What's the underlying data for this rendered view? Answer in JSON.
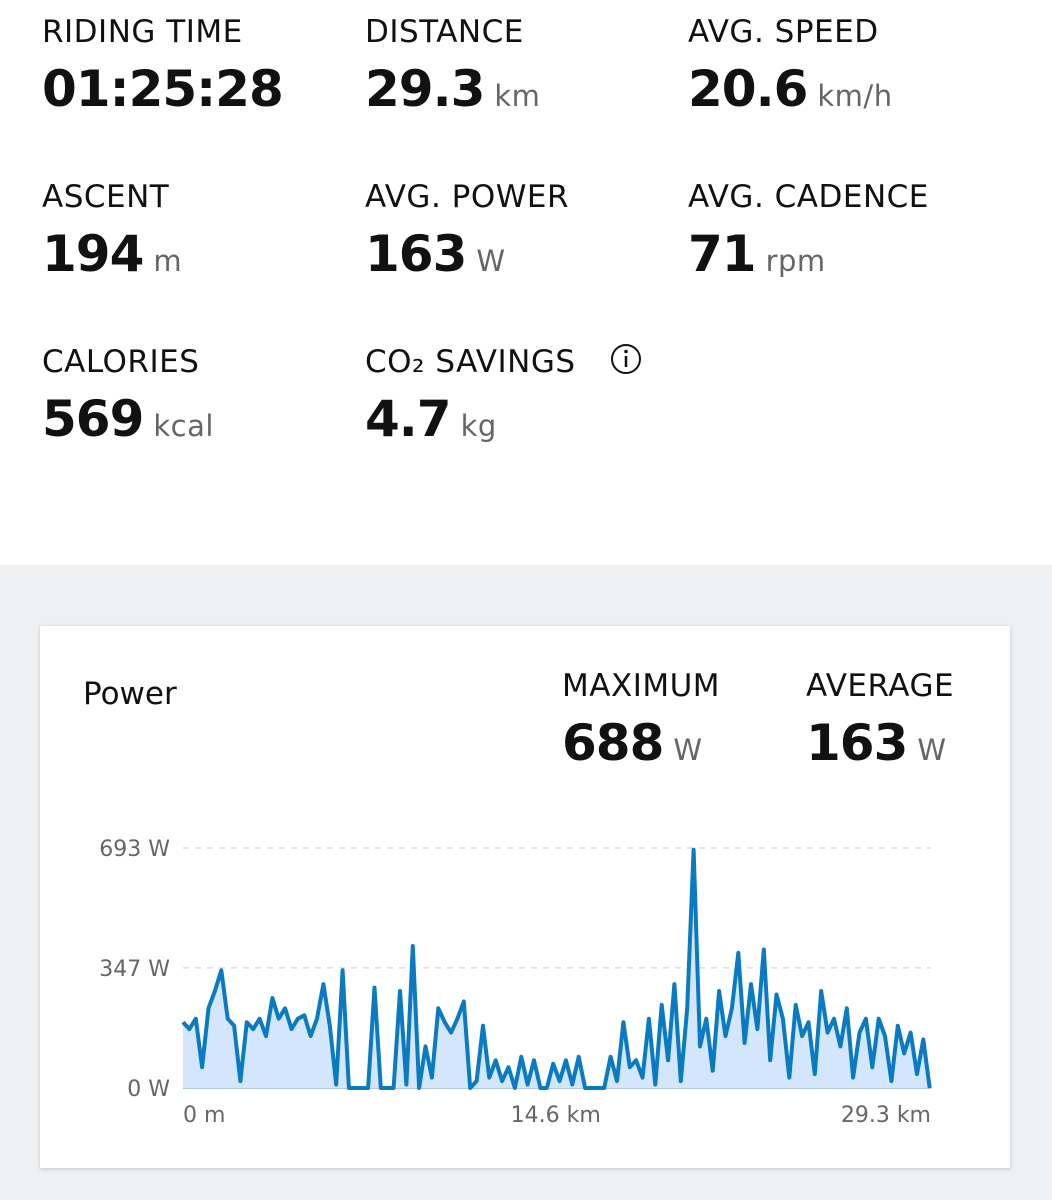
{
  "stats": [
    {
      "label": "RIDING TIME",
      "value": "01:25:28"
    },
    {
      "label": "DISTANCE",
      "value": "29.3",
      "unit": "km"
    },
    {
      "label": "AVG. SPEED",
      "value": "20.6",
      "unit": "km/h"
    },
    {
      "label": "ASCENT",
      "value": "194",
      "unit": "m"
    },
    {
      "label": "AVG. POWER",
      "value": "163",
      "unit": "W"
    },
    {
      "label": "AVG. CADENCE",
      "value": "71",
      "unit": "rpm"
    },
    {
      "label": "CALORIES",
      "value": "569",
      "unit": "kcal"
    },
    {
      "label": "CO₂ SAVINGS",
      "value": "4.7",
      "unit": "kg"
    }
  ],
  "chart_data": {
    "type": "area",
    "title": "Power",
    "summary": [
      {
        "label": "MAXIMUM",
        "value": "688",
        "unit": "W"
      },
      {
        "label": "AVERAGE",
        "value": "163",
        "unit": "W"
      }
    ],
    "x": [
      0,
      0.25,
      0.5,
      0.75,
      1,
      1.25,
      1.5,
      1.75,
      2,
      2.25,
      2.5,
      2.75,
      3,
      3.25,
      3.5,
      3.75,
      4,
      4.25,
      4.5,
      4.75,
      5,
      5.25,
      5.5,
      5.75,
      6,
      6.25,
      6.5,
      6.75,
      7,
      7.25,
      7.5,
      7.75,
      8,
      8.25,
      8.5,
      8.75,
      9,
      9.25,
      9.5,
      9.75,
      10,
      10.25,
      10.5,
      10.75,
      11,
      11.25,
      11.5,
      11.75,
      12,
      12.25,
      12.5,
      12.75,
      13,
      13.25,
      13.5,
      13.75,
      14,
      14.25,
      14.5,
      14.75,
      15,
      15.25,
      15.5,
      15.75,
      16,
      16.25,
      16.5,
      16.75,
      17,
      17.25,
      17.5,
      17.75,
      18,
      18.25,
      18.5,
      18.75,
      19,
      19.25,
      19.5,
      19.75,
      20,
      20.25,
      20.5,
      20.75,
      21,
      21.25,
      21.5,
      21.75,
      22,
      22.25,
      22.5,
      22.75,
      23,
      23.25,
      23.5,
      23.75,
      24,
      24.25,
      24.5,
      24.75,
      25,
      25.25,
      25.5,
      25.75,
      26,
      26.25,
      26.5,
      26.75,
      27,
      27.25,
      27.5,
      27.75,
      28,
      28.25,
      28.5,
      28.75,
      29,
      29.25
    ],
    "values": [
      190,
      170,
      200,
      60,
      230,
      280,
      340,
      200,
      180,
      20,
      190,
      170,
      200,
      150,
      260,
      200,
      230,
      170,
      200,
      210,
      150,
      200,
      300,
      180,
      10,
      340,
      0,
      0,
      0,
      0,
      290,
      0,
      0,
      0,
      280,
      10,
      410,
      0,
      120,
      30,
      230,
      190,
      160,
      200,
      250,
      0,
      20,
      180,
      30,
      80,
      20,
      60,
      0,
      90,
      10,
      80,
      0,
      0,
      70,
      20,
      80,
      10,
      90,
      0,
      0,
      0,
      0,
      90,
      20,
      190,
      60,
      80,
      30,
      200,
      10,
      240,
      80,
      300,
      20,
      230,
      688,
      120,
      200,
      50,
      280,
      150,
      230,
      390,
      130,
      300,
      170,
      400,
      80,
      270,
      200,
      30,
      240,
      150,
      190,
      40,
      280,
      160,
      200,
      120,
      230,
      30,
      160,
      200,
      60,
      200,
      150,
      20,
      180,
      100,
      160,
      40,
      140,
      0
    ],
    "xlim": [
      0,
      29.3
    ],
    "xticks": [
      {
        "value": 0,
        "label": "0 m"
      },
      {
        "value": 14.6,
        "label": "14.6 km"
      },
      {
        "value": 29.3,
        "label": "29.3 km"
      }
    ],
    "ylim": [
      0,
      693
    ],
    "yticks": [
      {
        "value": 0,
        "label": "0 W"
      },
      {
        "value": 347,
        "label": "347 W"
      },
      {
        "value": 693,
        "label": "693 W"
      }
    ],
    "color": "#0a7bc2",
    "fill": "#d3e6fb",
    "grid": true
  }
}
